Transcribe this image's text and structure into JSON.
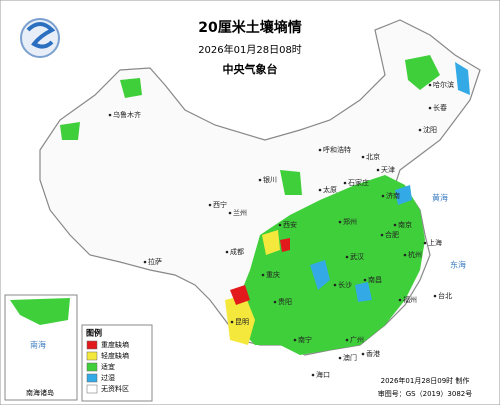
{
  "header": {
    "title": "20厘米土壤墒情",
    "date": "2026年01月28日08时",
    "issuer": "中央气象台"
  },
  "legend": {
    "title": "图例",
    "items": [
      {
        "label": "重度缺墒",
        "color": "#e31a1c"
      },
      {
        "label": "轻度缺墒",
        "color": "#f5e83c"
      },
      {
        "label": "适宜",
        "color": "#3fcf3a"
      },
      {
        "label": "过湿",
        "color": "#33a9e6"
      },
      {
        "label": "无资料区",
        "color": "#ffffff"
      }
    ]
  },
  "cities": [
    "乌鲁木齐",
    "拉萨",
    "西宁",
    "兰州",
    "银川",
    "呼和浩特",
    "北京",
    "天津",
    "石家庄",
    "太原",
    "济南",
    "郑州",
    "西安",
    "成都",
    "重庆",
    "武汉",
    "合肥",
    "南京",
    "上海",
    "杭州",
    "长沙",
    "南昌",
    "福州",
    "台北",
    "贵阳",
    "昆明",
    "南宁",
    "广州",
    "香港",
    "澳门",
    "海口",
    "哈尔滨",
    "长春",
    "沈阳"
  ],
  "seas": [
    "黄海",
    "东海",
    "南海"
  ],
  "inset": {
    "label": "南海诸岛"
  },
  "footer": {
    "made": "2026年01月28日09时 制作",
    "approval": "审图号：GS（2019）3082号"
  }
}
